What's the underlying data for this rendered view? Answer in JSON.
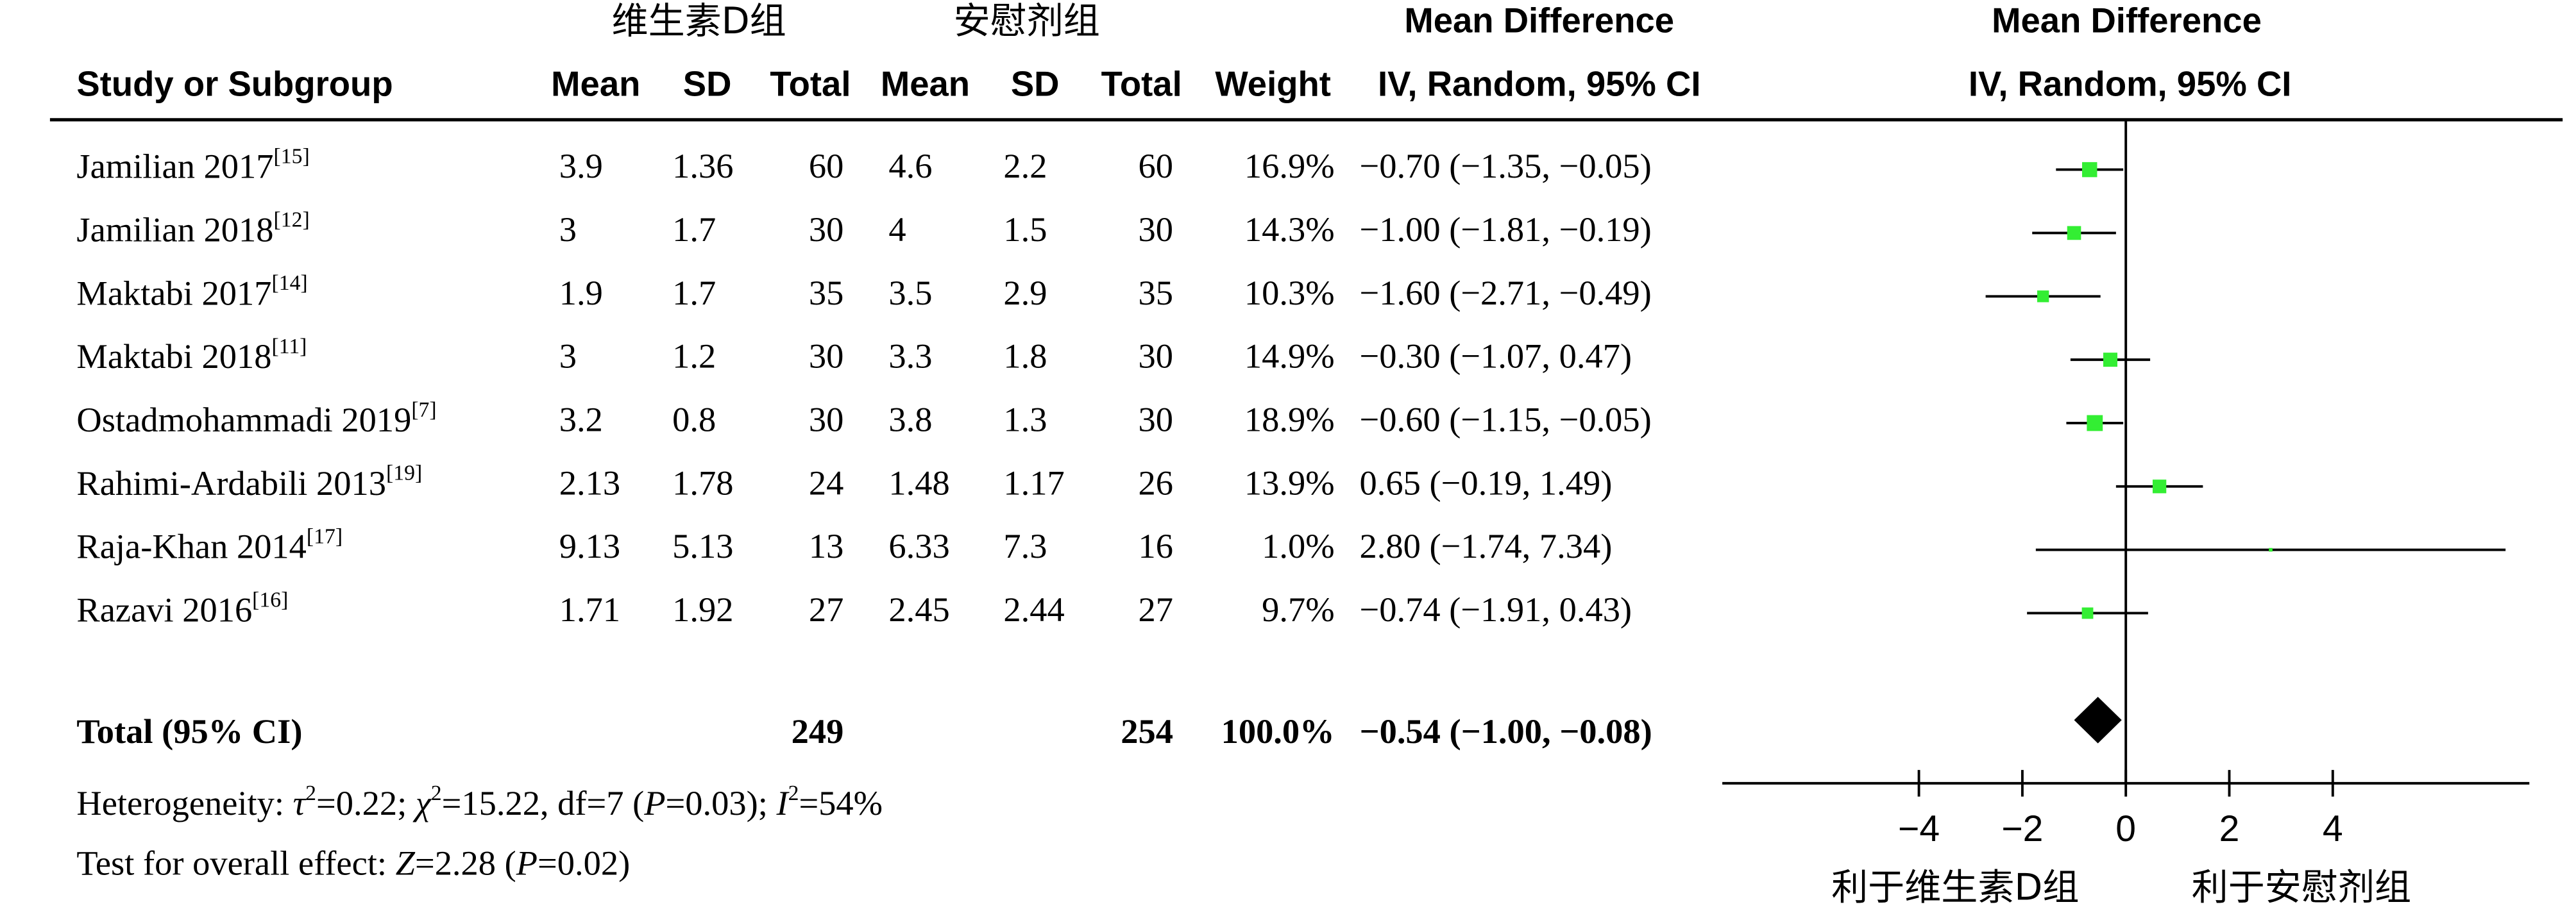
{
  "chart_data": {
    "type": "forest",
    "group_labels": [
      "维生素D组",
      "安慰剂组"
    ],
    "columns": [
      "Study or Subgroup",
      "Mean",
      "SD",
      "Total",
      "Mean",
      "SD",
      "Total",
      "Weight"
    ],
    "effect_header": [
      "Mean Difference",
      "IV, Random, 95% CI"
    ],
    "plot_header": [
      "Mean Difference",
      "IV, Random, 95% CI"
    ],
    "studies": [
      {
        "name": "Jamilian 2017",
        "ref": "[15]",
        "exp": [
          3.9,
          1.36,
          60
        ],
        "ctl": [
          4.6,
          2.2,
          60
        ],
        "weight": 16.9,
        "weight_label": "16.9%",
        "md": -0.7,
        "ci": [
          -1.35,
          -0.05
        ],
        "md_label": "−0.70 (−1.35, −0.05)"
      },
      {
        "name": "Jamilian 2018",
        "ref": "[12]",
        "exp": [
          3,
          1.7,
          30
        ],
        "ctl": [
          4,
          1.5,
          30
        ],
        "weight": 14.3,
        "weight_label": "14.3%",
        "md": -1.0,
        "ci": [
          -1.81,
          -0.19
        ],
        "md_label": "−1.00 (−1.81, −0.19)"
      },
      {
        "name": "Maktabi 2017",
        "ref": "[14]",
        "exp": [
          1.9,
          1.7,
          35
        ],
        "ctl": [
          3.5,
          2.9,
          35
        ],
        "weight": 10.3,
        "weight_label": "10.3%",
        "md": -1.6,
        "ci": [
          -2.71,
          -0.49
        ],
        "md_label": "−1.60 (−2.71, −0.49)"
      },
      {
        "name": "Maktabi 2018",
        "ref": "[11]",
        "exp": [
          3,
          1.2,
          30
        ],
        "ctl": [
          3.3,
          1.8,
          30
        ],
        "weight": 14.9,
        "weight_label": "14.9%",
        "md": -0.3,
        "ci": [
          -1.07,
          0.47
        ],
        "md_label": "−0.30 (−1.07, 0.47)"
      },
      {
        "name": "Ostadmohammadi 2019",
        "ref": "[7]",
        "exp": [
          3.2,
          0.8,
          30
        ],
        "ctl": [
          3.8,
          1.3,
          30
        ],
        "weight": 18.9,
        "weight_label": "18.9%",
        "md": -0.6,
        "ci": [
          -1.15,
          -0.05
        ],
        "md_label": "−0.60 (−1.15, −0.05)"
      },
      {
        "name": "Rahimi-Ardabili 2013",
        "ref": "[19]",
        "exp": [
          2.13,
          1.78,
          24
        ],
        "ctl": [
          1.48,
          1.17,
          26
        ],
        "weight": 13.9,
        "weight_label": "13.9%",
        "md": 0.65,
        "ci": [
          -0.19,
          1.49
        ],
        "md_label": "0.65 (−0.19, 1.49)"
      },
      {
        "name": "Raja-Khan 2014",
        "ref": "[17]",
        "exp": [
          9.13,
          5.13,
          13
        ],
        "ctl": [
          6.33,
          7.3,
          16
        ],
        "weight": 1.0,
        "weight_label": "1.0%",
        "md": 2.8,
        "ci": [
          -1.74,
          7.34
        ],
        "md_label": "2.80 (−1.74, 7.34)"
      },
      {
        "name": "Razavi 2016",
        "ref": "[16]",
        "exp": [
          1.71,
          1.92,
          27
        ],
        "ctl": [
          2.45,
          2.44,
          27
        ],
        "weight": 9.7,
        "weight_label": "9.7%",
        "md": -0.74,
        "ci": [
          -1.91,
          0.43
        ],
        "md_label": "−0.74 (−1.91, 0.43)"
      }
    ],
    "total": {
      "name": "Total (95% CI)",
      "exp_total": 249,
      "ctl_total": 254,
      "weight": 100,
      "weight_label": "100.0%",
      "md": -0.54,
      "ci": [
        -1.0,
        -0.08
      ],
      "md_label": "−0.54 (−1.00, −0.08)"
    },
    "heterogeneity": [
      "Heterogeneity: ",
      "τ",
      "2",
      "=0.22; ",
      "χ",
      "2",
      "=15.22, df=7 (",
      "P",
      "=0.03); ",
      "I",
      "2",
      "=54%"
    ],
    "overall_effect": [
      "Test for overall effect: ",
      "Z",
      "=2.28 (",
      "P",
      "=0.02)"
    ],
    "xlim": [
      -7.8,
      7.8
    ],
    "xticks": [
      {
        "value": -4,
        "label": "−4"
      },
      {
        "value": -2,
        "label": "−2"
      },
      0,
      2,
      4
    ],
    "x_labels": [
      "利于维生素D组",
      "利于安慰剂组"
    ],
    "marker_color": "#33ee33"
  }
}
